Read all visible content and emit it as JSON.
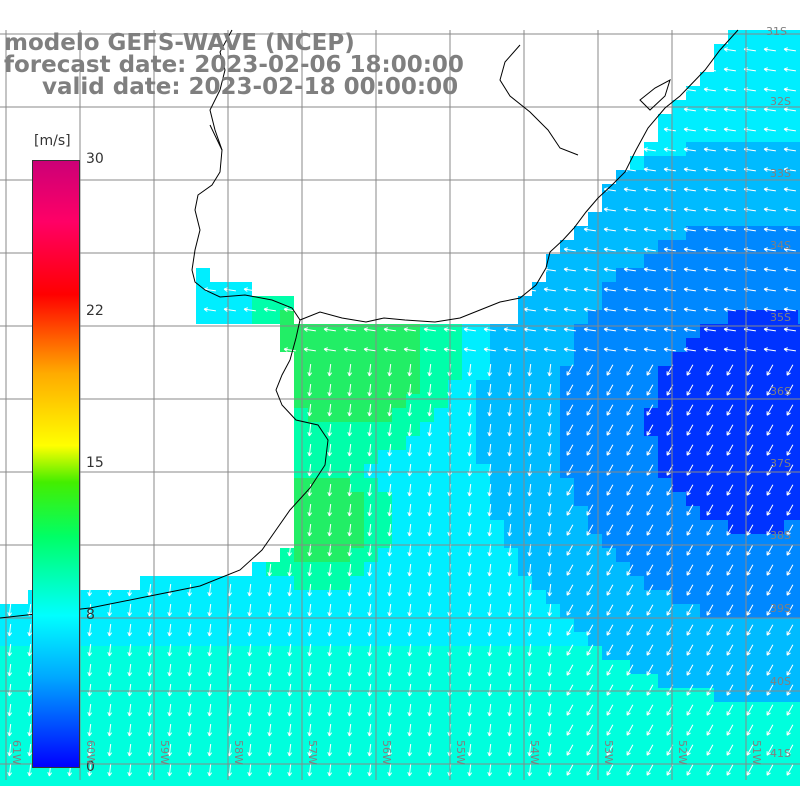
{
  "title": {
    "line1": "modelo GEFS-WAVE (NCEP)",
    "line2": "forecast date: 2023-02-06 18:00:00",
    "line3": "valid date: 2023-02-18 00:00:00"
  },
  "colorbar": {
    "unit": "[m/s]",
    "ticks": [
      {
        "label": "30",
        "value": 30
      },
      {
        "label": "22",
        "value": 22
      },
      {
        "label": "15",
        "value": 15
      },
      {
        "label": "8",
        "value": 8
      },
      {
        "label": "0",
        "value": 0
      }
    ]
  },
  "lat_labels": [
    "31S",
    "32S",
    "33S",
    "34S",
    "35S",
    "36S",
    "37S",
    "38S",
    "39S",
    "40S",
    "41S"
  ],
  "lon_labels": [
    "61W",
    "60W",
    "59W",
    "58W",
    "57W",
    "56W",
    "55W",
    "54W",
    "53W",
    "52W",
    "51W"
  ],
  "colors": {
    "land": "#ffffff",
    "arrow": "#ffffff",
    "grid": "#888888",
    "coast": "#000000",
    "label": "#7f7f7f"
  }
}
